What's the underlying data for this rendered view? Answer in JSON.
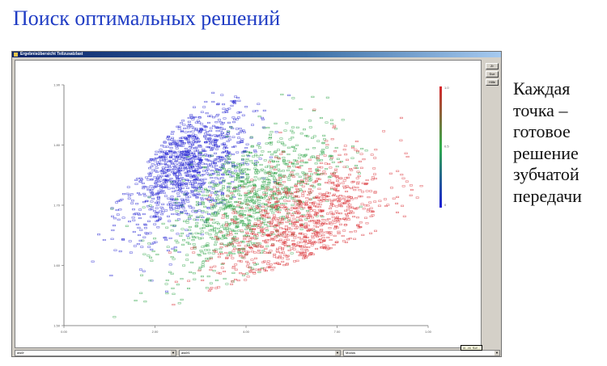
{
  "slide": {
    "title": "Поиск оптимальных решений",
    "caption_lines": [
      "Каждая",
      "точка –",
      "готовое",
      "решение",
      "зубчатой",
      "передачи"
    ]
  },
  "window": {
    "title": "Ergebnisübersicht Teilzusatzlast",
    "side_buttons": [
      "Zr",
      "Sve",
      "Hilfe"
    ],
    "combos": [
      {
        "value": "aw0f"
      },
      {
        "value": "aw0f1"
      },
      {
        "value": "Modus"
      }
    ],
    "tooltip": "vi...nt. Scf..."
  },
  "chart_data": {
    "type": "scatter",
    "title": "",
    "xlabel": "",
    "ylabel": "",
    "x_ticks": [
      "0.00",
      "2.00",
      "4.00",
      "7.00",
      "1.00"
    ],
    "y_ticks": [
      "1.50",
      "1.60",
      "1.70",
      "1.80",
      "1.90"
    ],
    "colorbar": {
      "colors": [
        "#1b1bd6",
        "#2fae4a",
        "#d9242b"
      ],
      "labels": [
        "1.0",
        "0.5",
        "0"
      ]
    },
    "point_count": 3200,
    "clusters": [
      {
        "name": "blue",
        "color": "#1a1ad0"
      },
      {
        "name": "green",
        "color": "#1f9e3a"
      },
      {
        "name": "red",
        "color": "#d8282e"
      }
    ]
  }
}
